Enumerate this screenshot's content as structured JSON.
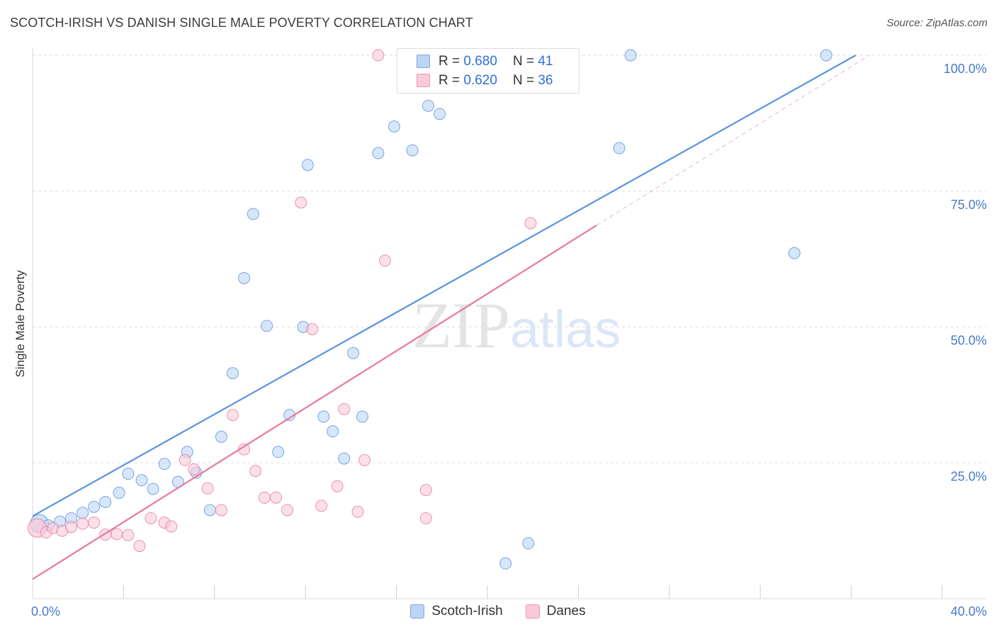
{
  "header": {
    "title": "SCOTCH-IRISH VS DANISH SINGLE MALE POVERTY CORRELATION CHART",
    "source": "Source: ZipAtlas.com"
  },
  "watermark": {
    "part1": "ZIP",
    "part2": "atlas"
  },
  "legend": {
    "rows": [
      {
        "r_label": "R =",
        "r_value": "0.680",
        "n_label": "N =",
        "n_value": "41",
        "color": "#a9c8f0",
        "border": "#7ea6e0"
      },
      {
        "r_label": "R =",
        "r_value": "0.620",
        "n_label": "N =",
        "n_value": "36",
        "color": "#f7bfd0",
        "border": "#e996b2"
      }
    ]
  },
  "bottom_legend": [
    {
      "label": "Scotch-Irish",
      "color": "#a9c8f0",
      "border": "#7ea6e0"
    },
    {
      "label": "Danes",
      "color": "#f7bfd0",
      "border": "#e996b2"
    }
  ],
  "chart_data": {
    "type": "scatter",
    "title": "SCOTCH-IRISH VS DANISH SINGLE MALE POVERTY CORRELATION CHART",
    "xlabel": "",
    "ylabel": "Single Male Poverty",
    "xlim": [
      0,
      40
    ],
    "ylim": [
      0,
      100
    ],
    "x_tick_labels": [
      "0.0%",
      "40.0%"
    ],
    "y_ticks": [
      25,
      50,
      75,
      100
    ],
    "y_tick_labels": [
      "25.0%",
      "50.0%",
      "75.0%",
      "100.0%"
    ],
    "grid": true,
    "series": [
      {
        "name": "Scotch-Irish",
        "color": "#5b93de",
        "fill": "#bcd5f3",
        "points": [
          [
            0.3,
            13.8
          ],
          [
            0.7,
            13.5
          ],
          [
            1.2,
            14.2
          ],
          [
            1.7,
            14.8
          ],
          [
            2.2,
            15.8
          ],
          [
            2.7,
            16.9
          ],
          [
            3.2,
            17.8
          ],
          [
            3.8,
            19.5
          ],
          [
            4.2,
            23.0
          ],
          [
            4.8,
            21.8
          ],
          [
            5.3,
            20.2
          ],
          [
            5.8,
            24.8
          ],
          [
            6.4,
            21.5
          ],
          [
            6.8,
            27.0
          ],
          [
            7.2,
            23.2
          ],
          [
            7.8,
            16.3
          ],
          [
            8.3,
            29.8
          ],
          [
            8.8,
            41.5
          ],
          [
            9.7,
            70.8
          ],
          [
            9.3,
            59.0
          ],
          [
            10.3,
            50.2
          ],
          [
            10.8,
            27.0
          ],
          [
            11.3,
            33.8
          ],
          [
            11.9,
            50.0
          ],
          [
            12.1,
            79.8
          ],
          [
            12.8,
            33.5
          ],
          [
            13.2,
            30.8
          ],
          [
            13.7,
            25.8
          ],
          [
            14.1,
            45.2
          ],
          [
            14.5,
            33.5
          ],
          [
            15.2,
            82.0
          ],
          [
            15.9,
            86.9
          ],
          [
            16.7,
            82.5
          ],
          [
            17.4,
            90.7
          ],
          [
            17.9,
            89.2
          ],
          [
            20.8,
            6.5
          ],
          [
            21.8,
            10.2
          ],
          [
            25.8,
            82.9
          ],
          [
            26.3,
            100.0
          ],
          [
            33.5,
            63.6
          ],
          [
            34.9,
            100.0
          ]
        ],
        "trendline": {
          "x": [
            0,
            36.2
          ],
          "y": [
            15.2,
            100.0
          ]
        }
      },
      {
        "name": "Danes",
        "color": "#e8799d",
        "fill": "#f9cbd9",
        "points": [
          [
            0.2,
            13.0
          ],
          [
            0.6,
            12.2
          ],
          [
            0.9,
            13.0
          ],
          [
            1.3,
            12.5
          ],
          [
            1.7,
            13.2
          ],
          [
            2.2,
            13.8
          ],
          [
            2.7,
            14.0
          ],
          [
            3.2,
            11.8
          ],
          [
            3.7,
            11.9
          ],
          [
            4.2,
            11.7
          ],
          [
            4.7,
            9.7
          ],
          [
            5.2,
            14.8
          ],
          [
            5.8,
            14.0
          ],
          [
            6.1,
            13.3
          ],
          [
            6.7,
            25.5
          ],
          [
            7.1,
            23.8
          ],
          [
            7.7,
            20.3
          ],
          [
            8.3,
            16.3
          ],
          [
            8.8,
            33.8
          ],
          [
            9.3,
            27.5
          ],
          [
            9.8,
            23.5
          ],
          [
            10.2,
            18.6
          ],
          [
            10.7,
            18.6
          ],
          [
            11.2,
            16.3
          ],
          [
            11.8,
            72.9
          ],
          [
            12.3,
            49.6
          ],
          [
            12.7,
            17.1
          ],
          [
            13.4,
            20.7
          ],
          [
            13.7,
            34.9
          ],
          [
            14.3,
            16.0
          ],
          [
            14.6,
            25.5
          ],
          [
            15.2,
            100.0
          ],
          [
            15.5,
            62.2
          ],
          [
            17.3,
            20.0
          ],
          [
            17.3,
            14.8
          ],
          [
            21.9,
            69.1
          ]
        ],
        "trendline": {
          "x": [
            0,
            24.8
          ],
          "y": [
            3.6,
            68.7
          ]
        },
        "trendline_extension": {
          "x": [
            24.8,
            36.8
          ],
          "y": [
            68.7,
            100.0
          ]
        }
      }
    ]
  }
}
